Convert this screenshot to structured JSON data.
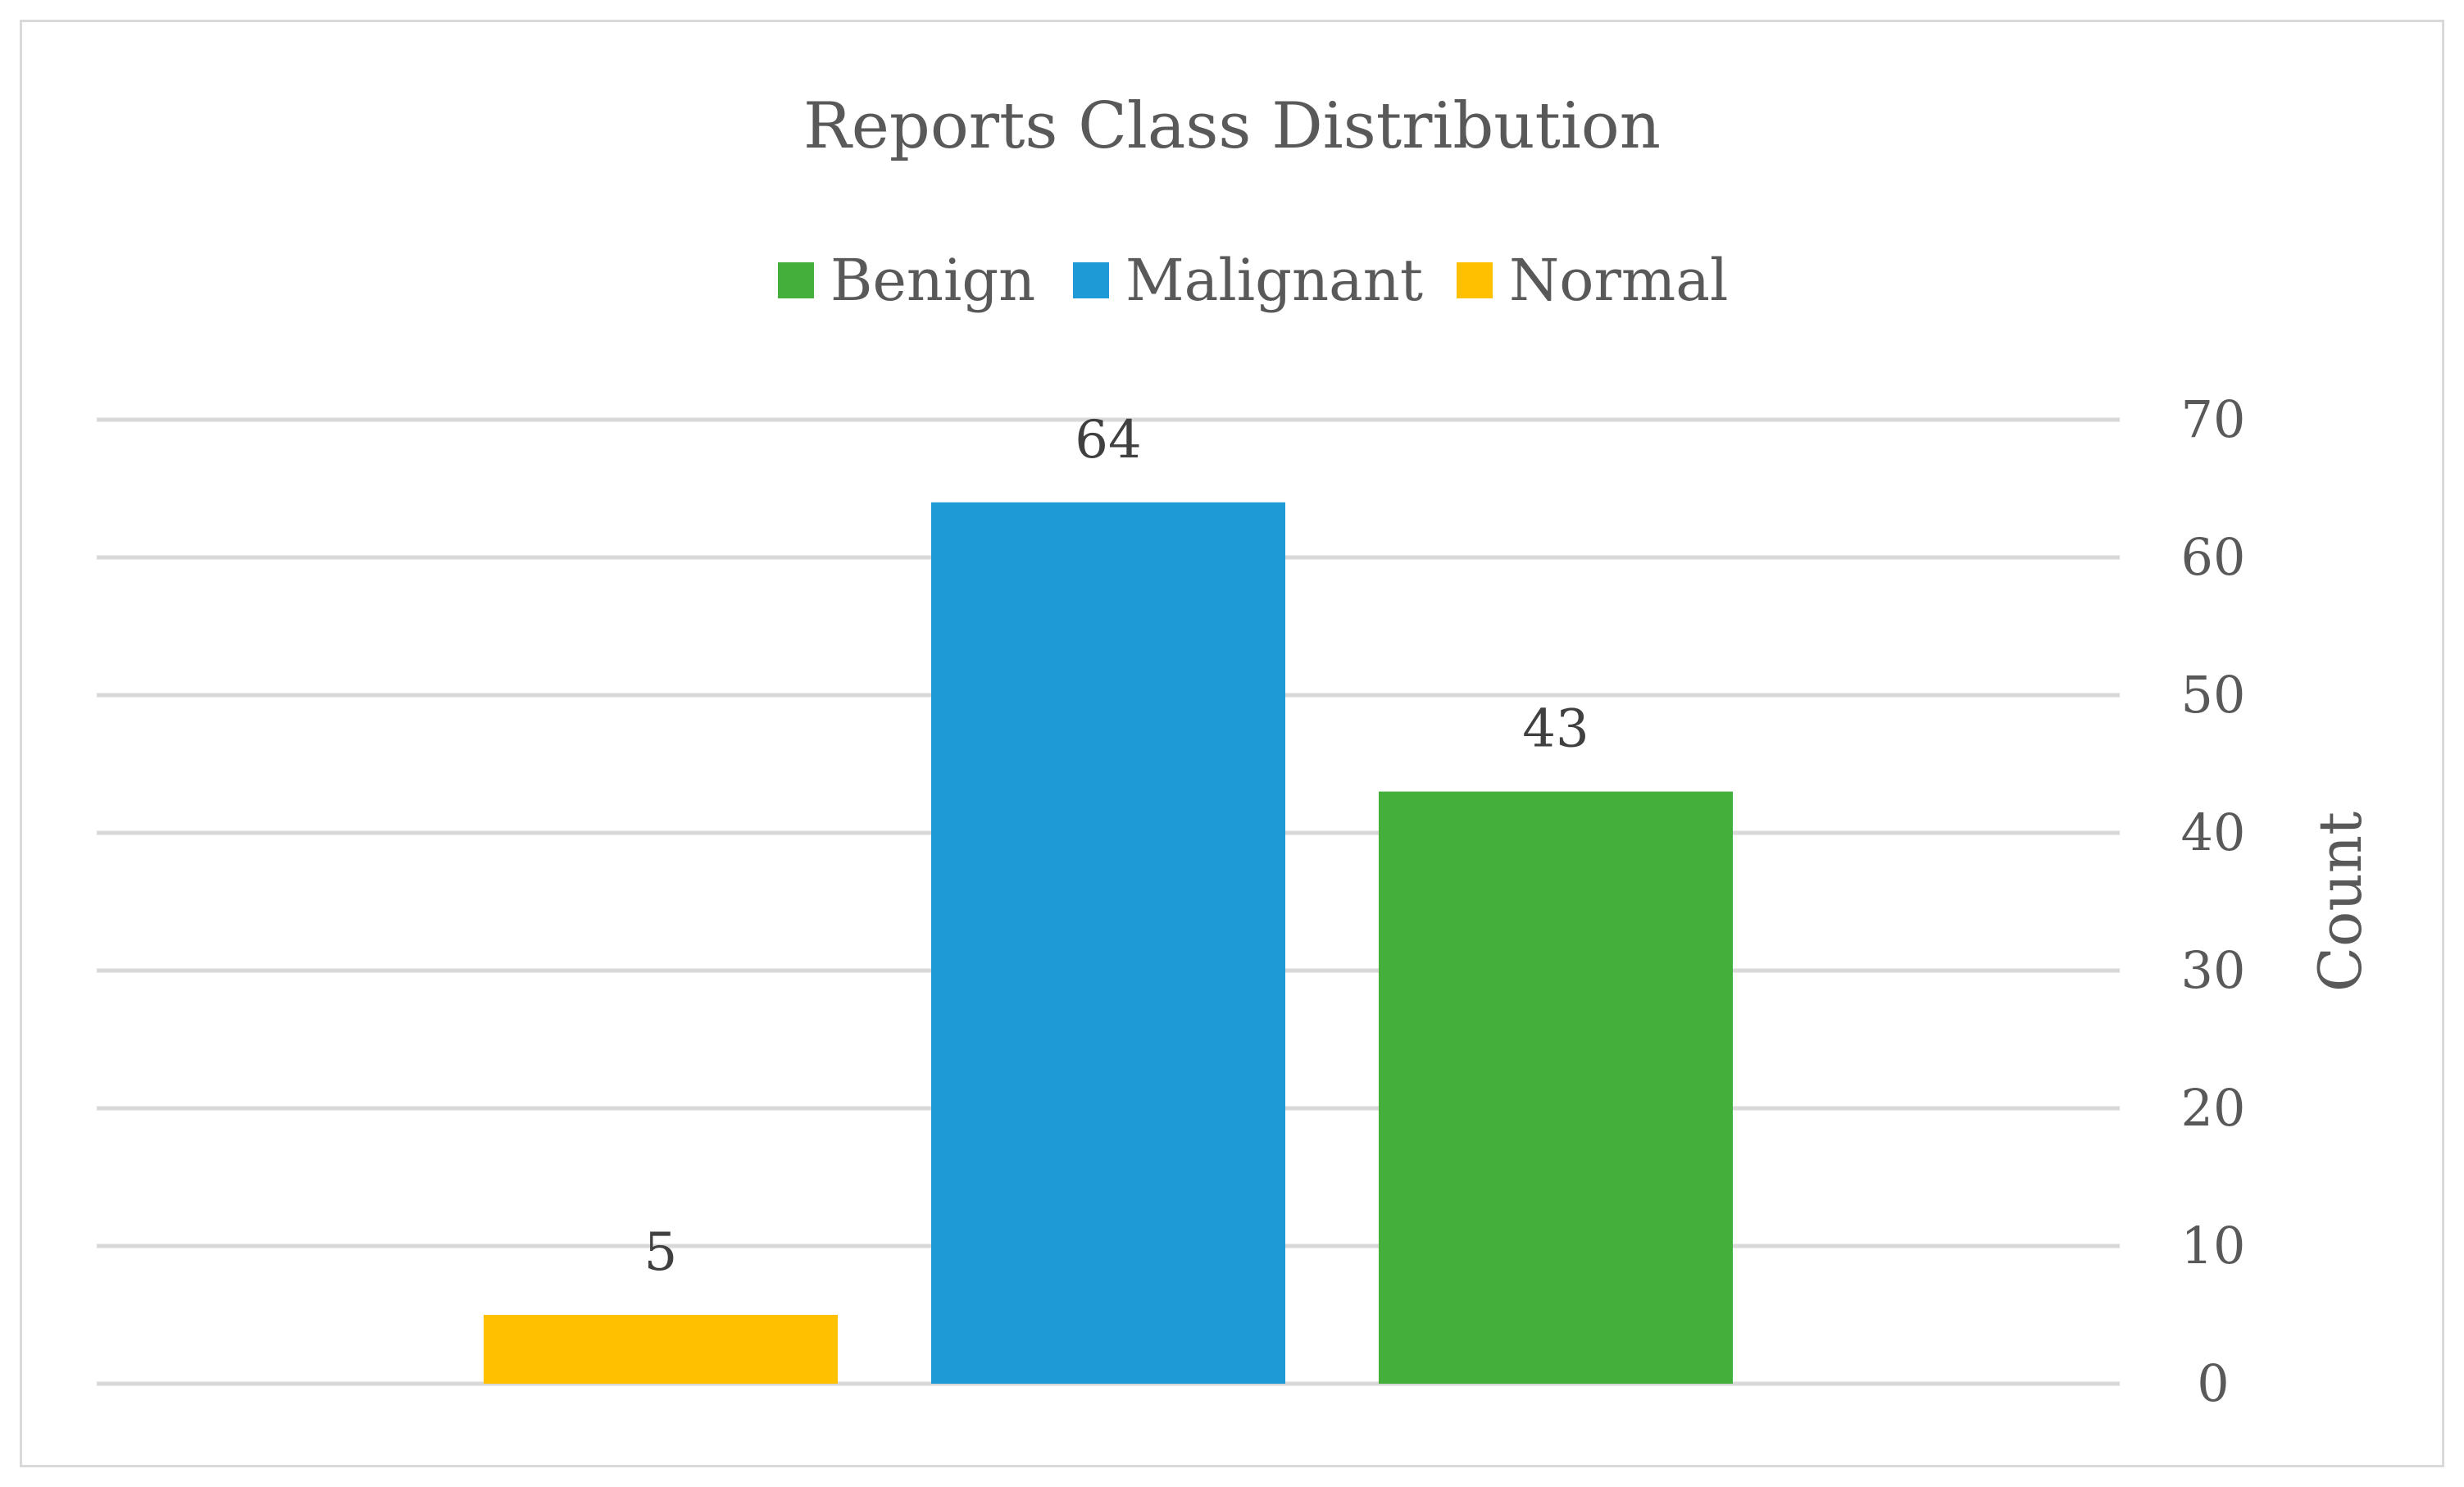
{
  "chart_data": {
    "type": "bar",
    "title": "Reports Class Distribution",
    "categories": [
      "Normal",
      "Malignant",
      "Benign"
    ],
    "values": [
      5,
      64,
      43
    ],
    "colors": {
      "Benign": "#44b03b",
      "Malignant": "#1e9bd7",
      "Normal": "#ffc000"
    },
    "legend": {
      "position": "top",
      "entries": [
        "Benign",
        "Malignant",
        "Normal"
      ]
    },
    "ylabel": "Count",
    "y_axis_side": "right",
    "ylim": [
      0,
      70
    ],
    "yticks": [
      0,
      10,
      20,
      30,
      40,
      50,
      60,
      70
    ],
    "grid": true
  }
}
